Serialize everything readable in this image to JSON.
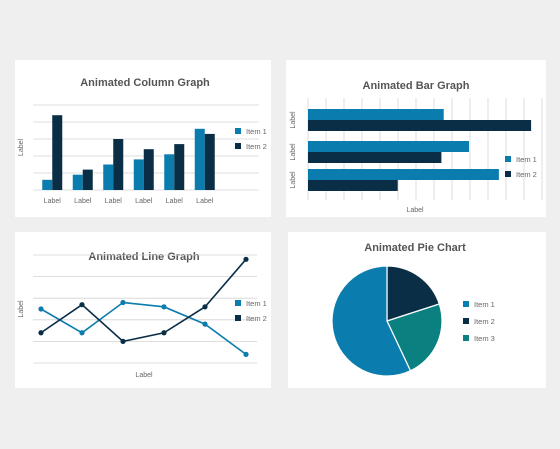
{
  "colors": {
    "teal": "#0a7cad",
    "navy": "#0b2e47",
    "green": "#0b8080"
  },
  "chart_data": [
    {
      "id": "column",
      "type": "bar",
      "title": "Animated Column Graph",
      "xlabel": "",
      "ylabel": "Label",
      "categories": [
        "Label",
        "Label",
        "Label",
        "Label",
        "Label",
        "Label"
      ],
      "ylim": [
        0,
        5
      ],
      "grid": true,
      "legend": "right",
      "series": [
        {
          "name": "Item 1",
          "values": [
            0.6,
            0.9,
            1.5,
            1.8,
            2.1,
            3.6
          ]
        },
        {
          "name": "Item 2",
          "values": [
            4.4,
            1.2,
            3.0,
            2.4,
            2.7,
            3.3
          ]
        }
      ]
    },
    {
      "id": "bar",
      "type": "bar",
      "orientation": "horizontal",
      "title": "Animated Bar Graph",
      "xlabel": "Label",
      "ylabel": "",
      "categories": [
        "Label",
        "Label",
        "Label"
      ],
      "xlim": [
        0,
        10
      ],
      "grid": true,
      "legend": "right",
      "series": [
        {
          "name": "Item 1",
          "values": [
            5.9,
            7.0,
            8.3
          ]
        },
        {
          "name": "Item 2",
          "values": [
            9.7,
            5.8,
            3.9
          ]
        }
      ]
    },
    {
      "id": "line",
      "type": "line",
      "title": "Animated Line Graph",
      "xlabel": "Label",
      "ylabel": "Label",
      "x": [
        1,
        2,
        3,
        4,
        5,
        6
      ],
      "ylim": [
        0,
        5
      ],
      "grid": true,
      "legend": "right",
      "series": [
        {
          "name": "Item 1",
          "values": [
            2.5,
            1.4,
            2.8,
            2.6,
            1.8,
            0.4
          ]
        },
        {
          "name": "Item 2",
          "values": [
            1.4,
            2.7,
            1.0,
            1.4,
            2.6,
            4.8
          ]
        }
      ]
    },
    {
      "id": "pie",
      "type": "pie",
      "title": "Animated Pie Chart",
      "legend": "right",
      "series": [
        {
          "name": "Item 1",
          "values": [
            57
          ]
        },
        {
          "name": "Item 2",
          "values": [
            20
          ]
        },
        {
          "name": "Item 3",
          "values": [
            23
          ]
        }
      ]
    }
  ]
}
